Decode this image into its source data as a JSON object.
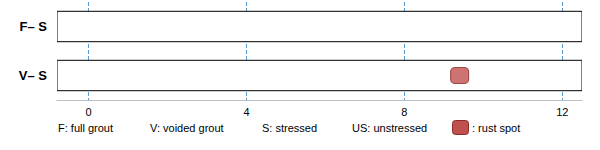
{
  "chart_data": {
    "type": "bar",
    "orientation": "horizontal",
    "categories": [
      "F– S",
      "V– S"
    ],
    "bar_start": [
      -0.8,
      -0.8
    ],
    "values": [
      12.5,
      12.5
    ],
    "color": "#ffffff",
    "xlim": [
      -0.8,
      12.5
    ],
    "xticks": [
      0,
      4,
      8,
      12
    ],
    "grid": true,
    "markers": [
      {
        "category": "V– S",
        "x": 9.4,
        "color": "#c0504d",
        "name": ": rust spot"
      }
    ],
    "annotations": [
      "F: full grout",
      "V: voided grout",
      "S: stressed",
      "US: unstressed"
    ]
  }
}
